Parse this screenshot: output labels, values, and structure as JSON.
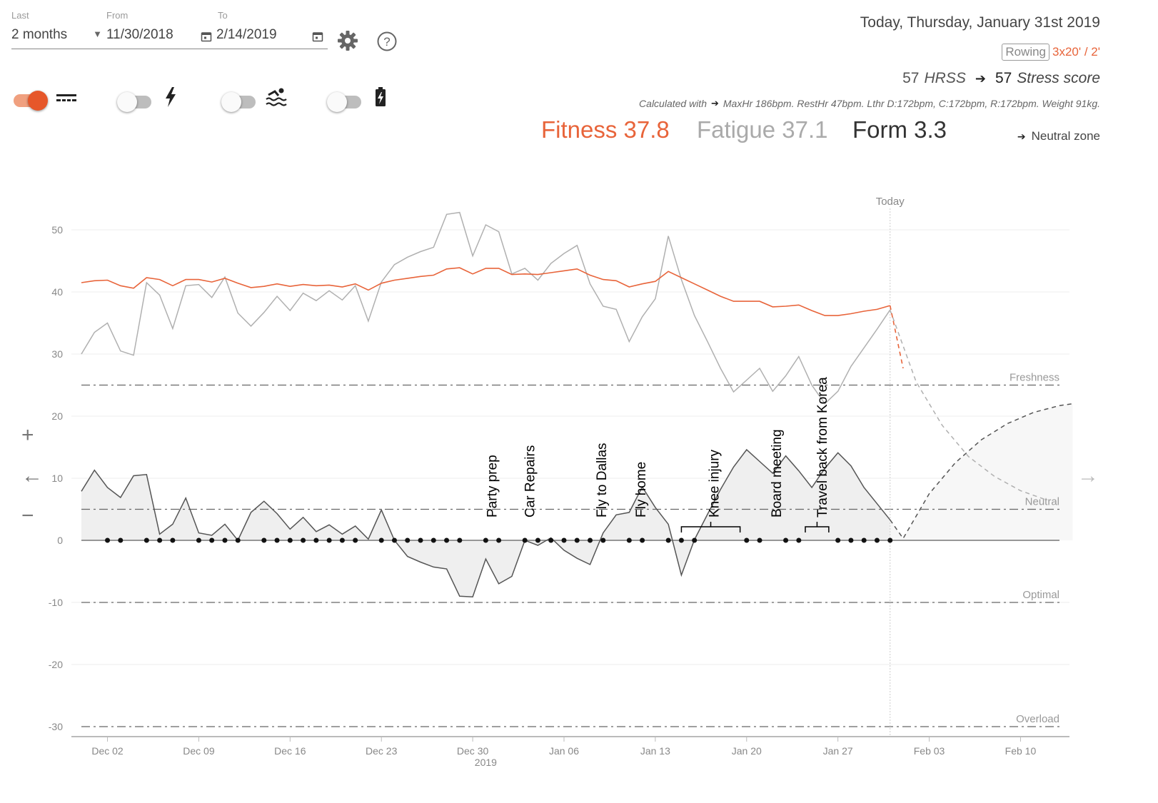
{
  "controls": {
    "last_label": "Last",
    "last_value": "2 months",
    "from_label": "From",
    "from_value": "11/30/2018",
    "to_label": "To",
    "to_value": "2/14/2019",
    "toggles": [
      {
        "name": "fitness-lines",
        "on": true,
        "icon": "lines-icon"
      },
      {
        "name": "power",
        "on": false,
        "icon": "bolt-icon"
      },
      {
        "name": "swim",
        "on": false,
        "icon": "swim-icon"
      },
      {
        "name": "battery",
        "on": false,
        "icon": "battery-icon"
      }
    ]
  },
  "summary": {
    "today": "Today, Thursday, January 31st 2019",
    "activity_tag": "Rowing",
    "activity_detail": "3x20' / 2'",
    "hrss_value": "57",
    "hrss_label": "HRSS",
    "stress_value": "57",
    "stress_label": "Stress score",
    "calculated_with": "Calculated with",
    "calc_details": "MaxHr 186bpm. RestHr 47bpm. Lthr D:172bpm, C:172bpm, R:172bpm. Weight 91kg.",
    "fitness": "Fitness 37.8",
    "fatigue": "Fatigue 37.1",
    "form": "Form 3.3",
    "zone": "Neutral zone"
  },
  "colors": {
    "fitness": "#e8643a",
    "fatigue": "#aaaaaa",
    "form": "#555555",
    "grid": "#eeeeee"
  },
  "nav": {
    "zoom_in": "+",
    "zoom_out": "−",
    "prev": "←",
    "next": "→"
  },
  "chart_data": {
    "type": "line",
    "ylim": [
      -30,
      55
    ],
    "yticks": [
      50,
      40,
      30,
      20,
      10,
      0,
      -10,
      -20,
      -30
    ],
    "xrange": [
      0,
      76
    ],
    "xticks": [
      {
        "day": 2,
        "label": "Dec 02"
      },
      {
        "day": 9,
        "label": "Dec 09"
      },
      {
        "day": 16,
        "label": "Dec 16"
      },
      {
        "day": 23,
        "label": "Dec 23"
      },
      {
        "day": 30,
        "label": "Dec 30"
      },
      {
        "day": 37,
        "label": "Jan 06"
      },
      {
        "day": 44,
        "label": "Jan 13"
      },
      {
        "day": 51,
        "label": "Jan 20"
      },
      {
        "day": 58,
        "label": "Jan 27"
      },
      {
        "day": 65,
        "label": "Feb 03"
      },
      {
        "day": 72,
        "label": "Feb 10"
      }
    ],
    "year_label": "2019",
    "today_day": 62,
    "today_label": "Today",
    "zones": [
      {
        "y": 25,
        "label": "Freshness"
      },
      {
        "y": 5,
        "label": "Neutral"
      },
      {
        "y": -10,
        "label": "Optimal"
      },
      {
        "y": -30,
        "label": "Overload"
      }
    ],
    "series": [
      {
        "name": "Fitness",
        "x0": 0,
        "values": [
          41.5,
          41.8,
          41.9,
          41,
          40.6,
          42.3,
          42,
          41,
          42,
          42,
          41.6,
          42.2,
          41.4,
          40.7,
          40.9,
          41.3,
          40.9,
          41.2,
          41,
          41.1,
          40.8,
          41.3,
          40.3,
          41.4,
          41.9,
          42.2,
          42.5,
          42.7,
          43.7,
          43.9,
          42.9,
          43.8,
          43.8,
          42.8,
          42.9,
          42.8,
          43.1,
          43.4,
          43.7,
          42.7,
          42,
          41.8,
          40.8,
          41.3,
          41.7,
          43.3,
          42.3,
          41.3,
          40.3,
          39.3,
          38.5,
          38.5,
          38.5,
          37.6,
          37.7,
          37.9,
          37,
          36.2,
          36.2,
          36.5,
          36.9,
          37.2,
          37.8
        ]
      },
      {
        "name": "Fitness projection",
        "x0": 62,
        "values": [
          37.8,
          27.7
        ]
      },
      {
        "name": "Fatigue",
        "x0": 0,
        "values": [
          30,
          33.5,
          35,
          30.5,
          29.8,
          41.5,
          39.5,
          34.1,
          41,
          41.2,
          39.1,
          42.4,
          36.6,
          34.5,
          36.7,
          39.3,
          37,
          39.8,
          38.6,
          40.2,
          38.7,
          41,
          35.3,
          41.6,
          44.4,
          45.6,
          46.5,
          47.2,
          52.5,
          52.8,
          45.8,
          50.8,
          49.7,
          42.9,
          43.8,
          41.9,
          44.6,
          46.2,
          47.5,
          41.3,
          37.7,
          37.2,
          32,
          36,
          38.9,
          49,
          42,
          36.2,
          32,
          27.7,
          23.9,
          25.8,
          27.7,
          24,
          26.5,
          29.6,
          25,
          22,
          24,
          28,
          31,
          34,
          37.1
        ]
      },
      {
        "name": "Fatigue projection",
        "points": [
          [
            62,
            37.1
          ],
          [
            64,
            25.5
          ],
          [
            66,
            18.5
          ],
          [
            68,
            13.5
          ],
          [
            70,
            10.3
          ],
          [
            72,
            8
          ],
          [
            74,
            6.5
          ]
        ]
      },
      {
        "name": "Form",
        "x0": 0,
        "values": [
          7.9,
          11.3,
          8.5,
          6.9,
          10.4,
          10.6,
          1,
          2.6,
          6.8,
          1.2,
          0.8,
          2.6,
          0,
          4.5,
          6.3,
          4.3,
          1.8,
          3.7,
          1.4,
          2.5,
          1,
          2.3,
          0.2,
          4.9,
          0,
          -2.6,
          -3.5,
          -4.3,
          -4.6,
          -9,
          -9.1,
          -3,
          -7,
          -5.8,
          0,
          -0.8,
          0.4,
          -1.6,
          -2.9,
          -3.9,
          1.2,
          4.1,
          4.5,
          8.6,
          5.3,
          2.6,
          -5.6,
          0.1,
          4.2,
          8.2,
          11.8,
          14.6,
          12.7,
          10.8,
          13.6,
          11.2,
          8.5,
          11.6,
          14.1,
          12,
          8.5,
          5.9,
          3.3
        ]
      },
      {
        "name": "Form projection",
        "points": [
          [
            62,
            3.3
          ],
          [
            63,
            0.3
          ],
          [
            65,
            7.5
          ],
          [
            67,
            12.5
          ],
          [
            69,
            16.2
          ],
          [
            71,
            18.8
          ],
          [
            73,
            20.6
          ],
          [
            75,
            21.7
          ],
          [
            76,
            22
          ]
        ]
      }
    ],
    "training_days": [
      2,
      3,
      5,
      6,
      7,
      9,
      10,
      11,
      12,
      14,
      15,
      16,
      17,
      18,
      19,
      20,
      21,
      23,
      24,
      25,
      26,
      27,
      28,
      29,
      31,
      32,
      34,
      35,
      36,
      37,
      38,
      39,
      40,
      42,
      43,
      45,
      46,
      47,
      51,
      52,
      54,
      55,
      58,
      59,
      60,
      61,
      62
    ],
    "annotations": [
      {
        "day": 31.4,
        "text": "Party prep"
      },
      {
        "day": 34.3,
        "text": "Car Repairs"
      },
      {
        "day": 39.8,
        "text": "Fly to Dallas"
      },
      {
        "day": 42.8,
        "text": "Fly home"
      },
      {
        "day": 48.4,
        "text": "Knee injury"
      },
      {
        "day": 53.2,
        "text": "Board meeting"
      },
      {
        "day": 56.7,
        "text": "Travel back from Korea"
      }
    ],
    "brackets": [
      {
        "from": 46,
        "to": 50.5
      },
      {
        "from": 55.5,
        "to": 57.3
      }
    ]
  }
}
